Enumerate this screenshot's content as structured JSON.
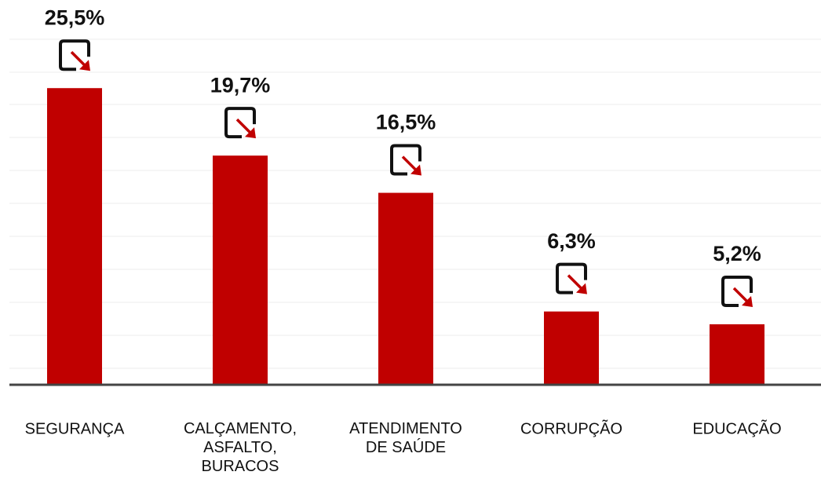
{
  "chart_data": {
    "type": "bar",
    "categories": [
      "SEGURANÇA",
      "CALÇAMENTO,\nASFALTO,\nBURACOS",
      "ATENDIMENTO\nDE SAÚDE",
      "CORRUPÇÃO",
      "EDUCAÇÃO"
    ],
    "values": [
      25.5,
      19.7,
      16.5,
      6.3,
      5.2
    ],
    "value_labels": [
      "25,5%",
      "19,7%",
      "16,5%",
      "6,3%",
      "5,2%"
    ],
    "color": "#c00000",
    "ylim": [
      0,
      27
    ]
  }
}
